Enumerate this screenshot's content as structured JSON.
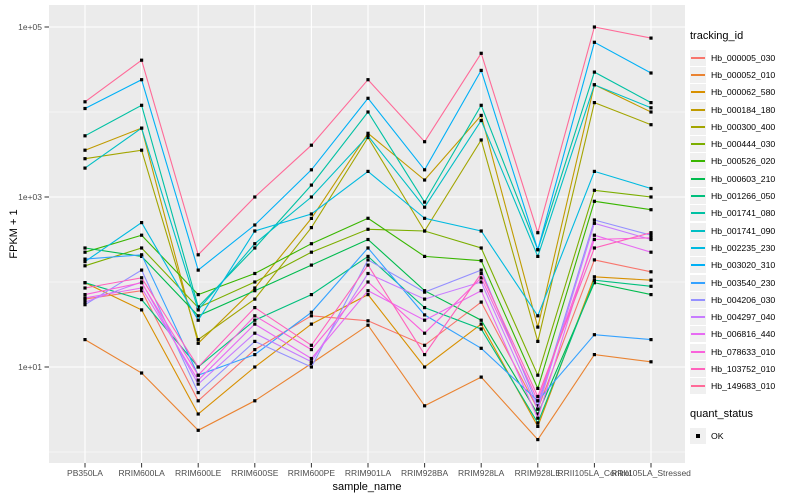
{
  "figure": {
    "y_axis_title": "FPKM + 1",
    "x_axis_title": "sample_name"
  },
  "legend": {
    "tracking_title": "tracking_id",
    "quant_title": "quant_status",
    "quant_items": [
      {
        "label": "OK",
        "marker": "black-filled-square"
      }
    ]
  },
  "colors": {
    "panel_background": "#EBEBEB",
    "gridline": "#FFFFFF",
    "tick_label": "#4D4D4D",
    "tick_mark": "#333333",
    "point": "#000000"
  },
  "chart_data": {
    "type": "line",
    "title": "",
    "xlabel": "sample_name",
    "ylabel": "FPKM + 1",
    "y_scale": "log10",
    "ylim": [
      0.74,
      182000
    ],
    "y_ticks": [
      10,
      1000,
      100000
    ],
    "y_tick_labels": [
      "1e+01",
      "1e+03",
      "1e+05"
    ],
    "y_minor_ticks": [
      1,
      100,
      10000
    ],
    "grid": "white major and minor on gray panel",
    "legend_position": "right",
    "point_marker": "filled-square-black",
    "x": [
      "PB350LA",
      "RRIM600LA",
      "RRIM600LE",
      "RRIM600SE",
      "RRIM600PE",
      "RRIM901LA",
      "RRIM928BA",
      "RRIM928LA",
      "RRIM928LE",
      "RRII105LA_Control",
      "RRII105LA_Stressed"
    ],
    "series": [
      {
        "name": "Hb_000005_030",
        "color": "#F8766D",
        "values": [
          63,
          79,
          4,
          16,
          40,
          35,
          18,
          58,
          3.2,
          182,
          132
        ]
      },
      {
        "name": "Hb_000052_010",
        "color": "#EA8331",
        "values": [
          21,
          8.5,
          1.8,
          4,
          11,
          31,
          3.5,
          7.6,
          1.4,
          14,
          11.5
        ]
      },
      {
        "name": "Hb_000062_580",
        "color": "#D89000",
        "values": [
          98,
          47,
          2.8,
          10,
          32,
          71,
          10,
          32,
          2,
          115,
          105
        ]
      },
      {
        "name": "Hb_000184_180",
        "color": "#C09B00",
        "values": [
          3550,
          6460,
          19,
          85,
          560,
          5620,
          1585,
          9120,
          29.5,
          20900,
          10000
        ]
      },
      {
        "name": "Hb_000300_400",
        "color": "#A3A500",
        "values": [
          2820,
          3550,
          21,
          63,
          437,
          5010,
          398,
          4680,
          20,
          12900,
          7080
        ]
      },
      {
        "name": "Hb_000444_030",
        "color": "#7CAE00",
        "values": [
          155,
          251,
          50,
          100,
          224,
          417,
          398,
          251,
          8,
          1200,
          1000
        ]
      },
      {
        "name": "Hb_000526_020",
        "color": "#39B600",
        "values": [
          224,
          355,
          71,
          126,
          282,
          562,
          200,
          178,
          5.6,
          891,
          708
        ]
      },
      {
        "name": "Hb_000603_210",
        "color": "#00BB4E",
        "values": [
          251,
          200,
          40,
          79,
          158,
          316,
          79,
          35.5,
          2.8,
          98,
          71
        ]
      },
      {
        "name": "Hb_001266_050",
        "color": "#00BF7D",
        "values": [
          98,
          62,
          10,
          35.5,
          71,
          200,
          50,
          28,
          2.2,
          105,
          89
        ]
      },
      {
        "name": "Hb_001741_080",
        "color": "#00C1A3",
        "values": [
          5250,
          12000,
          51,
          251,
          1380,
          10000,
          871,
          12000,
          240,
          29500,
          12900
        ]
      },
      {
        "name": "Hb_001741_090",
        "color": "#00BFC4",
        "values": [
          2190,
          6460,
          47,
          282,
          1000,
          5250,
          759,
          7940,
          200,
          20900,
          11200
        ]
      },
      {
        "name": "Hb_002235_230",
        "color": "#00BAE0",
        "values": [
          174,
          500,
          35.5,
          398,
          631,
          2000,
          562,
          398,
          40,
          2000,
          1260
        ]
      },
      {
        "name": "Hb_003020_310",
        "color": "#00B0F6",
        "values": [
          11000,
          24000,
          138,
          468,
          2090,
          14500,
          2090,
          30900,
          240,
          66000,
          28800
        ]
      },
      {
        "name": "Hb_003540_230",
        "color": "#35A2FF",
        "values": [
          186,
          209,
          8,
          14,
          44,
          251,
          41,
          16.6,
          4,
          24,
          21
        ]
      },
      {
        "name": "Hb_004206_030",
        "color": "#9590FF",
        "values": [
          54,
          138,
          5,
          20,
          10,
          182,
          76,
          138,
          3.5,
          537,
          355
        ]
      },
      {
        "name": "Hb_004297_040",
        "color": "#C77CFF",
        "values": [
          58,
          100,
          6.3,
          25,
          11.5,
          126,
          63,
          100,
          3.2,
          490,
          316
        ]
      },
      {
        "name": "Hb_006816_440",
        "color": "#E76BF3",
        "values": [
          65,
          85,
          7,
          32,
          12.6,
          79,
          35.5,
          79,
          2.5,
          355,
          224
        ]
      },
      {
        "name": "Hb_078633_010",
        "color": "#FA62DB",
        "values": [
          71,
          98,
          8,
          40,
          16,
          100,
          25,
          112,
          4,
          316,
          331
        ]
      },
      {
        "name": "Hb_103752_010",
        "color": "#FF62BC",
        "values": [
          85,
          112,
          10,
          50,
          18,
          158,
          14,
          126,
          4.5,
          251,
          380
        ]
      },
      {
        "name": "Hb_149683_010",
        "color": "#FF6A98",
        "values": [
          13200,
          40700,
          209,
          1000,
          4070,
          24000,
          4470,
          49000,
          380,
          100000,
          74000
        ]
      }
    ]
  }
}
